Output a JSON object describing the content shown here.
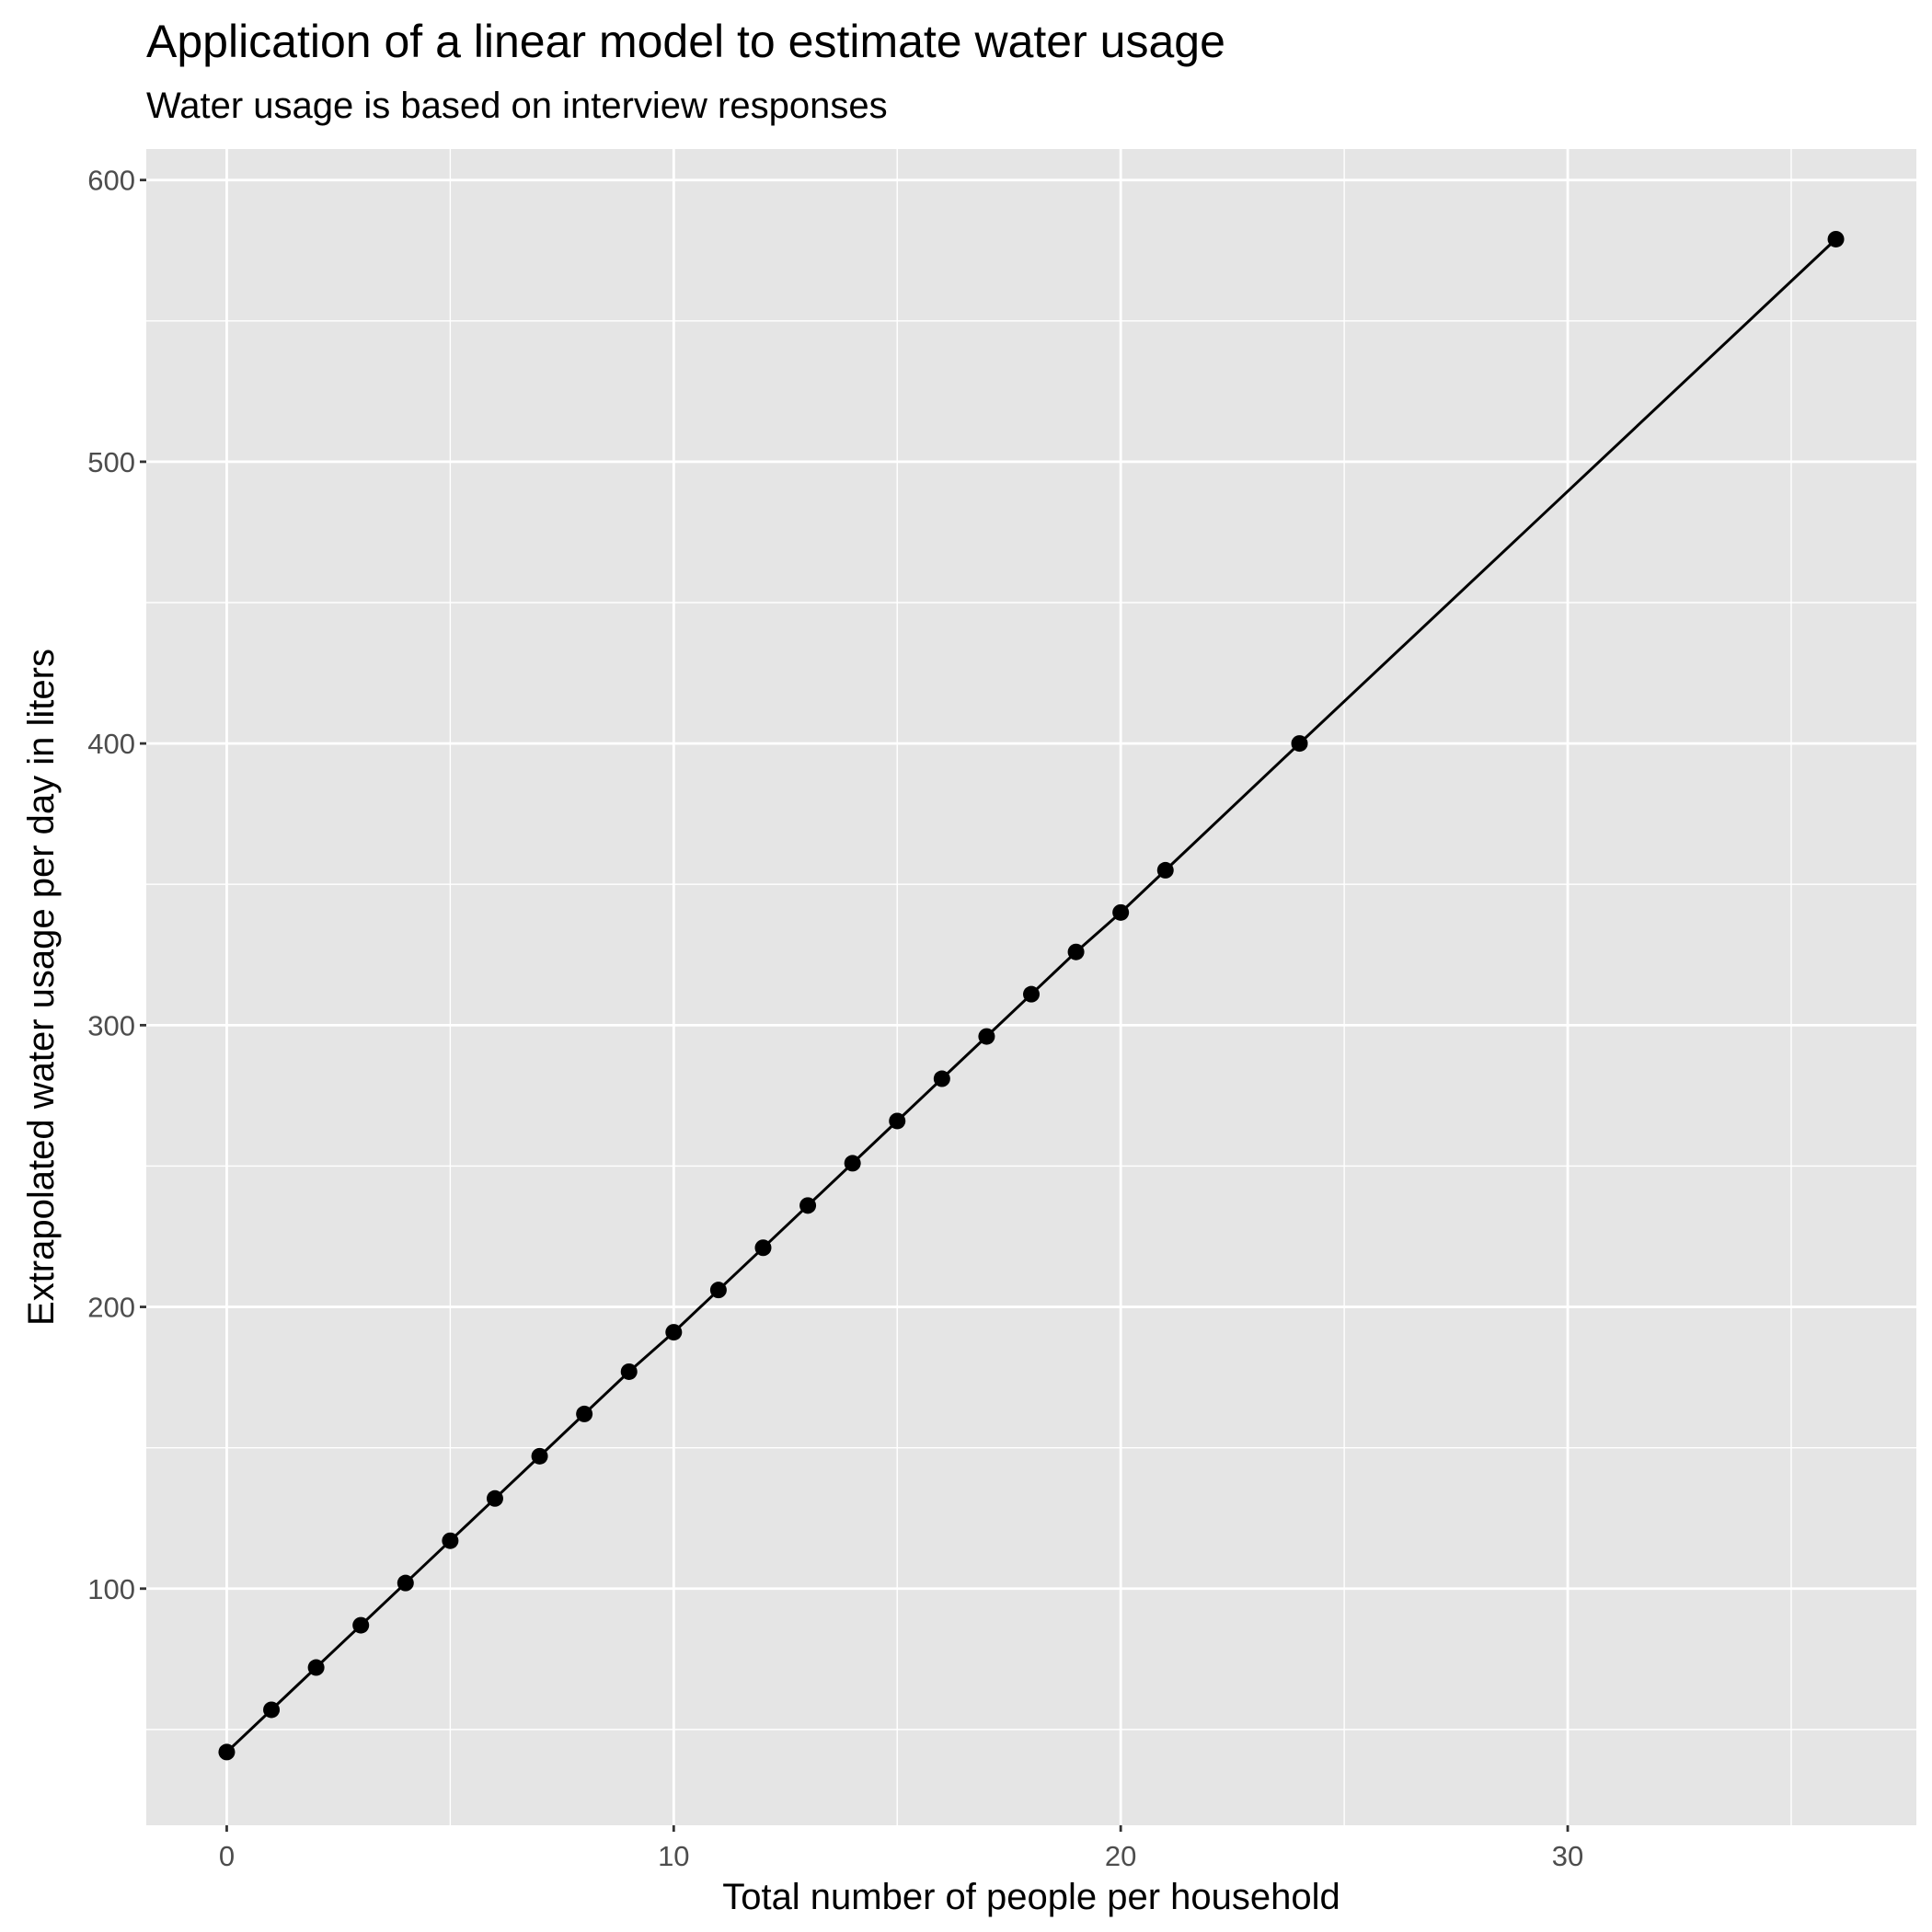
{
  "colors": {
    "panel_background": "#e5e5e5",
    "grid_line": "#ffffff",
    "series": "#000000",
    "tick_text": "#4d4d4d"
  },
  "chart_data": {
    "type": "line",
    "title": "Application of a linear model to estimate water usage",
    "subtitle": "Water usage is based on interview responses",
    "xlabel": "Total number of people per household",
    "ylabel": "Extrapolated water usage per day in liters",
    "xlim": [
      -1.8,
      37.8
    ],
    "ylim": [
      16,
      611
    ],
    "x_ticks": [
      0,
      10,
      20,
      30
    ],
    "x_tick_labels": [
      "0",
      "10",
      "20",
      "30"
    ],
    "x_minor_ticks": [
      5,
      15,
      25,
      35
    ],
    "y_ticks": [
      100,
      200,
      300,
      400,
      500,
      600
    ],
    "y_tick_labels": [
      "100",
      "200",
      "300",
      "400",
      "500",
      "600"
    ],
    "y_minor_ticks": [
      50,
      150,
      250,
      350,
      450,
      550
    ],
    "grid": true,
    "markers": true,
    "series": [
      {
        "x": [
          0,
          1,
          2,
          3,
          4,
          5,
          6,
          7,
          8,
          9,
          10,
          11,
          12,
          13,
          14,
          15,
          16,
          17,
          18,
          19,
          20,
          21,
          24,
          36
        ],
        "y": [
          42,
          57,
          72,
          87,
          102,
          117,
          132,
          147,
          162,
          177,
          191,
          206,
          221,
          236,
          251,
          266,
          281,
          296,
          311,
          326,
          340,
          355,
          400,
          579
        ]
      }
    ]
  }
}
